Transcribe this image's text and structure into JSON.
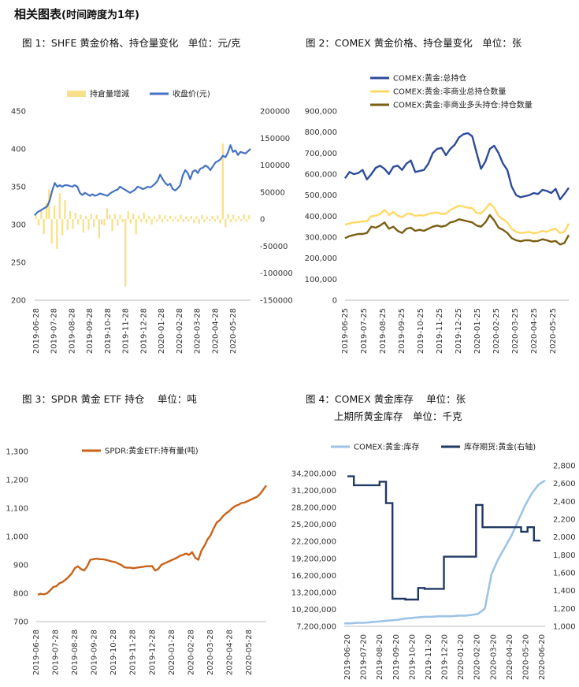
{
  "heading": {
    "main": "相关图表",
    "sub": "(时间跨度为1年)"
  },
  "captions": {
    "c1": "图 1：SHFE 黄金价格、持仓量变化　单位：元/克",
    "c2": "图 2：COMEX 黄金价格、持仓量变化　单位：张",
    "c3": "图 3：SPDR 黄金 ETF 持仓　 单位：吨",
    "c4a": "图 4：COMEX 黄金库存　 单位：张",
    "c4b": "上期所黄金库存　单位：千克"
  },
  "colors": {
    "navy": "#2E4B9B",
    "blue": "#4472C4",
    "yellow": "#FFD966",
    "yellowbar": "#F8E08A",
    "olive": "#7A5E12",
    "orange": "#C9621A",
    "lightblue": "#9DC3E6",
    "darknavy": "#203864"
  },
  "chart_data": [
    {
      "id": "shfe",
      "type": "bar+line",
      "legend": [
        "持倉量增減",
        "收盘价(元)"
      ],
      "x_ticks": [
        "2019-06-28",
        "2019-07-28",
        "2019-08-28",
        "2019-09-28",
        "2019-10-28",
        "2019-11-28",
        "2019-12-28",
        "2020-01-28",
        "2020-02-28",
        "2020-03-28",
        "2020-04-28",
        "2020-05-28"
      ],
      "y_left": {
        "ticks": [
          "450",
          "400",
          "350",
          "300",
          "250",
          "200"
        ],
        "ylim": [
          200,
          450
        ]
      },
      "y_right": {
        "ticks": [
          "200000",
          "150000",
          "100000",
          "50000",
          "0",
          "-50000",
          "-100000",
          "-150000"
        ],
        "ylim": [
          -150000,
          200000
        ]
      },
      "price": [
        312,
        316,
        318,
        320,
        322,
        324,
        332,
        345,
        355,
        350,
        352,
        350,
        352,
        352,
        351,
        350,
        352,
        350,
        342,
        339,
        342,
        340,
        338,
        340,
        338,
        339,
        341,
        340,
        339,
        338,
        341,
        343,
        345,
        346,
        350,
        348,
        346,
        344,
        342,
        344,
        346,
        350,
        349,
        347,
        348,
        350,
        349,
        351,
        354,
        358,
        366,
        360,
        355,
        352,
        354,
        347,
        345,
        348,
        352,
        365,
        372,
        368,
        360,
        370,
        372,
        368,
        374,
        375,
        378,
        376,
        372,
        377,
        382,
        384,
        386,
        391,
        389,
        395,
        405,
        396,
        398,
        392,
        396,
        395,
        394,
        397,
        400
      ],
      "oi_change": [
        5000,
        -12000,
        15000,
        -28000,
        30000,
        55000,
        -45000,
        25000,
        -55000,
        48000,
        -30000,
        35000,
        -20000,
        15000,
        -18000,
        12000,
        -10000,
        8000,
        -25000,
        6000,
        -20000,
        10000,
        -15000,
        8000,
        -35000,
        -10000,
        -12000,
        20000,
        8000,
        -22000,
        10000,
        -12000,
        8000,
        -6000,
        -125000,
        15000,
        -8000,
        10000,
        -28000,
        7000,
        -6000,
        12000,
        -8000,
        6000,
        -10000,
        5000,
        -5000,
        8000,
        -6000,
        7000,
        -5000,
        6000,
        -4000,
        5000,
        -5000,
        8000,
        -6000,
        5000,
        -4000,
        6000,
        -7000,
        5000,
        -9000,
        8000,
        -6000,
        5000,
        -4000,
        6000,
        -5000,
        7000,
        -8000,
        140000,
        -15000,
        10000,
        -6000,
        8000,
        -5000,
        6000,
        -4000,
        9000,
        -5000,
        7000
      ]
    },
    {
      "id": "comex_oi",
      "type": "line",
      "legend": [
        "COMEX:黄金:总持仓",
        "COMEX:黄金:非商业总持仓数量",
        "COMEX:黄金:非商业多头持仓:持仓数量"
      ],
      "x_ticks": [
        "2019-06-25",
        "2019-07-25",
        "2019-08-25",
        "2019-09-25",
        "2019-10-25",
        "2019-11-25",
        "2019-12-25",
        "2020-01-25",
        "2020-02-25",
        "2020-03-25",
        "2020-04-25",
        "2020-05-25"
      ],
      "y": {
        "ticks": [
          "900,000",
          "800,000",
          "700,000",
          "600,000",
          "500,000",
          "400,000",
          "300,000",
          "200,000",
          "100,000",
          "0"
        ],
        "ylim": [
          0,
          900000
        ]
      },
      "series": [
        {
          "name": "COMEX:黄金:总持仓",
          "values": [
            580000,
            610000,
            600000,
            605000,
            620000,
            575000,
            600000,
            630000,
            640000,
            625000,
            600000,
            635000,
            640000,
            620000,
            650000,
            665000,
            610000,
            615000,
            620000,
            650000,
            700000,
            720000,
            725000,
            690000,
            720000,
            740000,
            775000,
            790000,
            795000,
            780000,
            700000,
            625000,
            660000,
            720000,
            735000,
            700000,
            650000,
            620000,
            540000,
            500000,
            490000,
            495000,
            500000,
            510000,
            505000,
            525000,
            520000,
            510000,
            530000,
            480000,
            505000,
            535000
          ]
        },
        {
          "name": "COMEX:黄金:非商业总持仓数量",
          "values": [
            360000,
            365000,
            370000,
            372000,
            375000,
            376000,
            400000,
            402000,
            410000,
            430000,
            405000,
            420000,
            402000,
            395000,
            410000,
            412000,
            400000,
            405000,
            402000,
            410000,
            415000,
            418000,
            410000,
            412000,
            430000,
            440000,
            450000,
            445000,
            440000,
            438000,
            415000,
            412000,
            435000,
            460000,
            440000,
            400000,
            385000,
            370000,
            340000,
            325000,
            320000,
            322000,
            325000,
            318000,
            322000,
            330000,
            325000,
            335000,
            340000,
            320000,
            325000,
            365000
          ]
        },
        {
          "name": "COMEX:黄金:非商业多头持仓:持仓数量",
          "values": [
            295000,
            305000,
            310000,
            315000,
            315000,
            320000,
            350000,
            345000,
            355000,
            370000,
            340000,
            350000,
            330000,
            320000,
            340000,
            345000,
            330000,
            335000,
            330000,
            340000,
            350000,
            355000,
            350000,
            355000,
            370000,
            375000,
            385000,
            380000,
            375000,
            370000,
            355000,
            350000,
            370000,
            405000,
            380000,
            345000,
            335000,
            320000,
            295000,
            285000,
            280000,
            285000,
            285000,
            280000,
            282000,
            290000,
            285000,
            278000,
            282000,
            265000,
            272000,
            310000
          ]
        }
      ]
    },
    {
      "id": "spdr",
      "type": "line",
      "legend": [
        "SPDR:黄金ETF:持有量(吨)"
      ],
      "x_ticks": [
        "2019-06-28",
        "2019-07-28",
        "2019-08-28",
        "2019-09-28",
        "2019-10-28",
        "2019-11-28",
        "2019-12-28",
        "2020-01-28",
        "2020-02-28",
        "2020-03-28",
        "2020-04-28",
        "2020-05-28"
      ],
      "y": {
        "ticks": [
          "1,300",
          "1,200",
          "1,100",
          "1,000",
          "900",
          "800",
          "700"
        ],
        "ylim": [
          700,
          1300
        ]
      },
      "values": [
        795,
        798,
        796,
        800,
        810,
        822,
        825,
        835,
        840,
        848,
        858,
        870,
        888,
        895,
        885,
        880,
        895,
        918,
        920,
        922,
        920,
        920,
        918,
        915,
        912,
        910,
        905,
        900,
        892,
        890,
        890,
        888,
        890,
        892,
        893,
        895,
        895,
        896,
        880,
        885,
        900,
        905,
        910,
        915,
        920,
        925,
        932,
        935,
        940,
        935,
        945,
        925,
        918,
        950,
        968,
        990,
        1005,
        1030,
        1050,
        1058,
        1072,
        1082,
        1090,
        1100,
        1108,
        1112,
        1118,
        1120,
        1125,
        1130,
        1135,
        1140,
        1150,
        1165,
        1180
      ]
    },
    {
      "id": "comex_shfe_inventory",
      "type": "line",
      "legend": [
        "COMEX:黄金:库存",
        "库存期货:黄金(右轴)"
      ],
      "x_ticks": [
        "2019-06-20",
        "2019-07-20",
        "2019-08-20",
        "2019-09-20",
        "2019-10-20",
        "2019-11-20",
        "2019-12-20",
        "2020-01-20",
        "2020-02-20",
        "2020-03-20",
        "2020-04-20",
        "2020-05-20",
        "2020-06-20"
      ],
      "y_left": {
        "ticks": [
          "34,200,000",
          "31,200,000",
          "28,200,000",
          "25,200,000",
          "22,200,000",
          "19,200,000",
          "16,200,000",
          "13,200,000",
          "10,200,000",
          "7,200,000"
        ],
        "ylim": [
          7200000,
          34200000
        ]
      },
      "y_right": {
        "ticks": [
          "2,800",
          "2,600",
          "2,400",
          "2,200",
          "2,000",
          "1,800",
          "1,600",
          "1,400",
          "1,200",
          "1,000"
        ],
        "ylim": [
          1000,
          2800
        ]
      },
      "inventory": [
        7700000,
        7700000,
        7800000,
        7800000,
        7900000,
        8000000,
        8100000,
        8200000,
        8300000,
        8500000,
        8600000,
        8700000,
        8800000,
        8800000,
        8900000,
        8900000,
        8900000,
        9000000,
        9000000,
        9100000,
        9300000,
        10200000,
        16000000,
        18500000,
        20500000,
        22500000,
        25000000,
        27500000,
        29500000,
        31000000,
        31700000
      ],
      "shfe": [
        2680,
        2580,
        2580,
        2580,
        2580,
        2620,
        2380,
        1310,
        1310,
        1300,
        1300,
        1430,
        1420,
        1420,
        1420,
        1780,
        1780,
        1780,
        1780,
        1780,
        2360,
        2110,
        2110,
        2110,
        2110,
        2110,
        2110,
        2060,
        2110,
        1960
      ]
    }
  ]
}
